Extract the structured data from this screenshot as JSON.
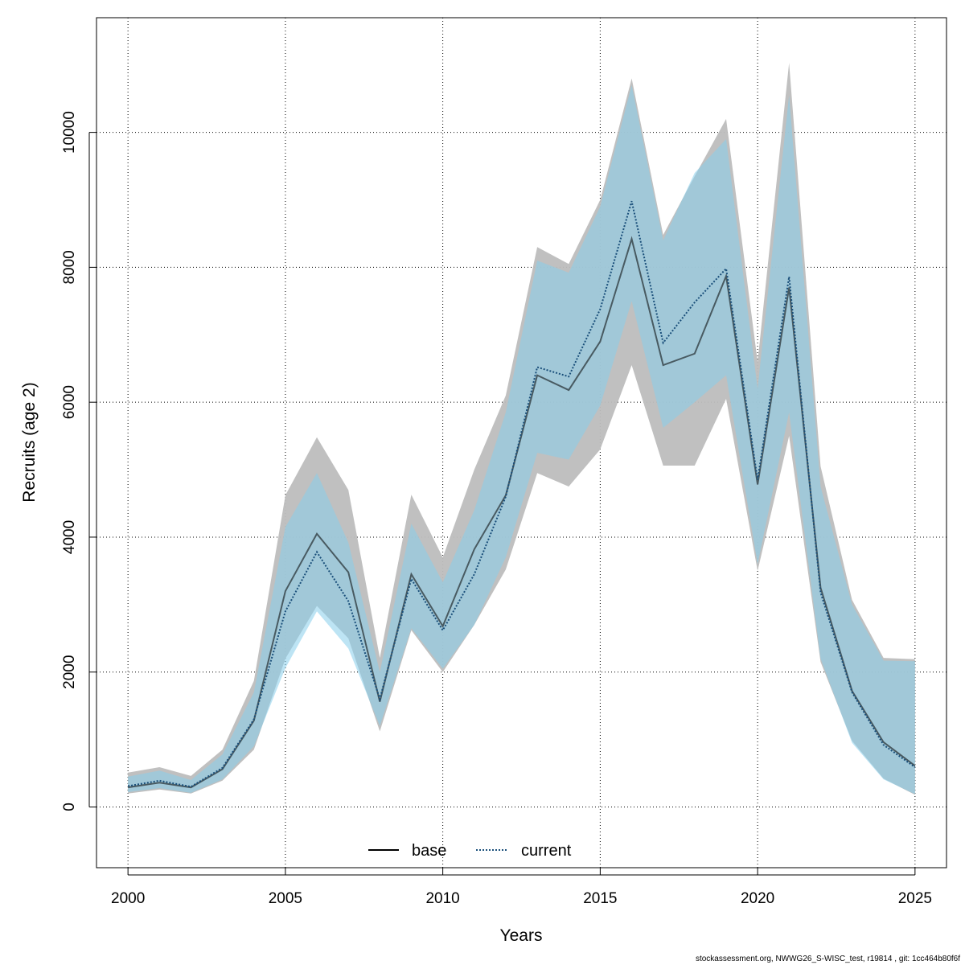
{
  "chart_data": {
    "type": "area",
    "xlabel": "Years",
    "ylabel": "Recruits (age 2)",
    "xlim": [
      1999,
      2026
    ],
    "ylim": [
      -900,
      11700
    ],
    "x_ticks": [
      2000,
      2005,
      2010,
      2015,
      2020,
      2025
    ],
    "y_ticks": [
      0,
      2000,
      4000,
      6000,
      8000,
      10000
    ],
    "grid": true,
    "legend_position": "bottom-center",
    "x": [
      2000,
      2001,
      2002,
      2003,
      2004,
      2005,
      2006,
      2007,
      2008,
      2009,
      2010,
      2011,
      2012,
      2013,
      2014,
      2015,
      2016,
      2017,
      2018,
      2019,
      2020,
      2021,
      2022,
      2023,
      2024,
      2025
    ],
    "series": [
      {
        "name": "base",
        "line_style": "solid",
        "color": "#000000",
        "band_color": "#bdbdbd",
        "values": [
          290,
          360,
          290,
          560,
          1280,
          3200,
          4050,
          3480,
          1560,
          3450,
          2680,
          3820,
          4620,
          6400,
          6180,
          6900,
          8420,
          6550,
          6720,
          7870,
          4780,
          7700,
          3250,
          1720,
          960,
          610
        ],
        "lower": [
          200,
          260,
          200,
          390,
          850,
          2200,
          2980,
          2500,
          1120,
          2620,
          2000,
          2700,
          3520,
          4950,
          4750,
          5300,
          6550,
          5060,
          5060,
          6050,
          3500,
          5500,
          2150,
          980,
          420,
          180
        ],
        "upper": [
          510,
          590,
          460,
          850,
          1870,
          4620,
          5480,
          4700,
          2210,
          4630,
          3700,
          5000,
          6100,
          8300,
          8050,
          9000,
          10800,
          8480,
          9350,
          10200,
          6600,
          11030,
          5050,
          3070,
          2210,
          2190
        ]
      },
      {
        "name": "current",
        "line_style": "dotted",
        "color": "#1a4f7a",
        "band_color": "#87ceeb",
        "values": [
          310,
          390,
          300,
          580,
          1300,
          2900,
          3780,
          3050,
          1600,
          3380,
          2620,
          3450,
          4600,
          6520,
          6380,
          7380,
          8980,
          6880,
          7480,
          7980,
          4850,
          7860,
          3180,
          1700,
          920,
          590
        ],
        "lower": [
          220,
          280,
          210,
          410,
          900,
          2060,
          2900,
          2350,
          1200,
          2650,
          2050,
          2700,
          3700,
          5250,
          5150,
          5950,
          7500,
          5620,
          6000,
          6400,
          3600,
          5850,
          2200,
          950,
          410,
          190
        ],
        "upper": [
          450,
          540,
          400,
          780,
          1700,
          4150,
          4950,
          3920,
          2000,
          4200,
          3330,
          4400,
          5850,
          8100,
          7920,
          8900,
          10700,
          8400,
          9400,
          9900,
          6200,
          10550,
          4750,
          3000,
          2170,
          2160
        ]
      }
    ]
  },
  "footer_text": "stockassessment.org, NWWG26_S-WISC_test, r19814 , git: 1cc464b80f6f"
}
